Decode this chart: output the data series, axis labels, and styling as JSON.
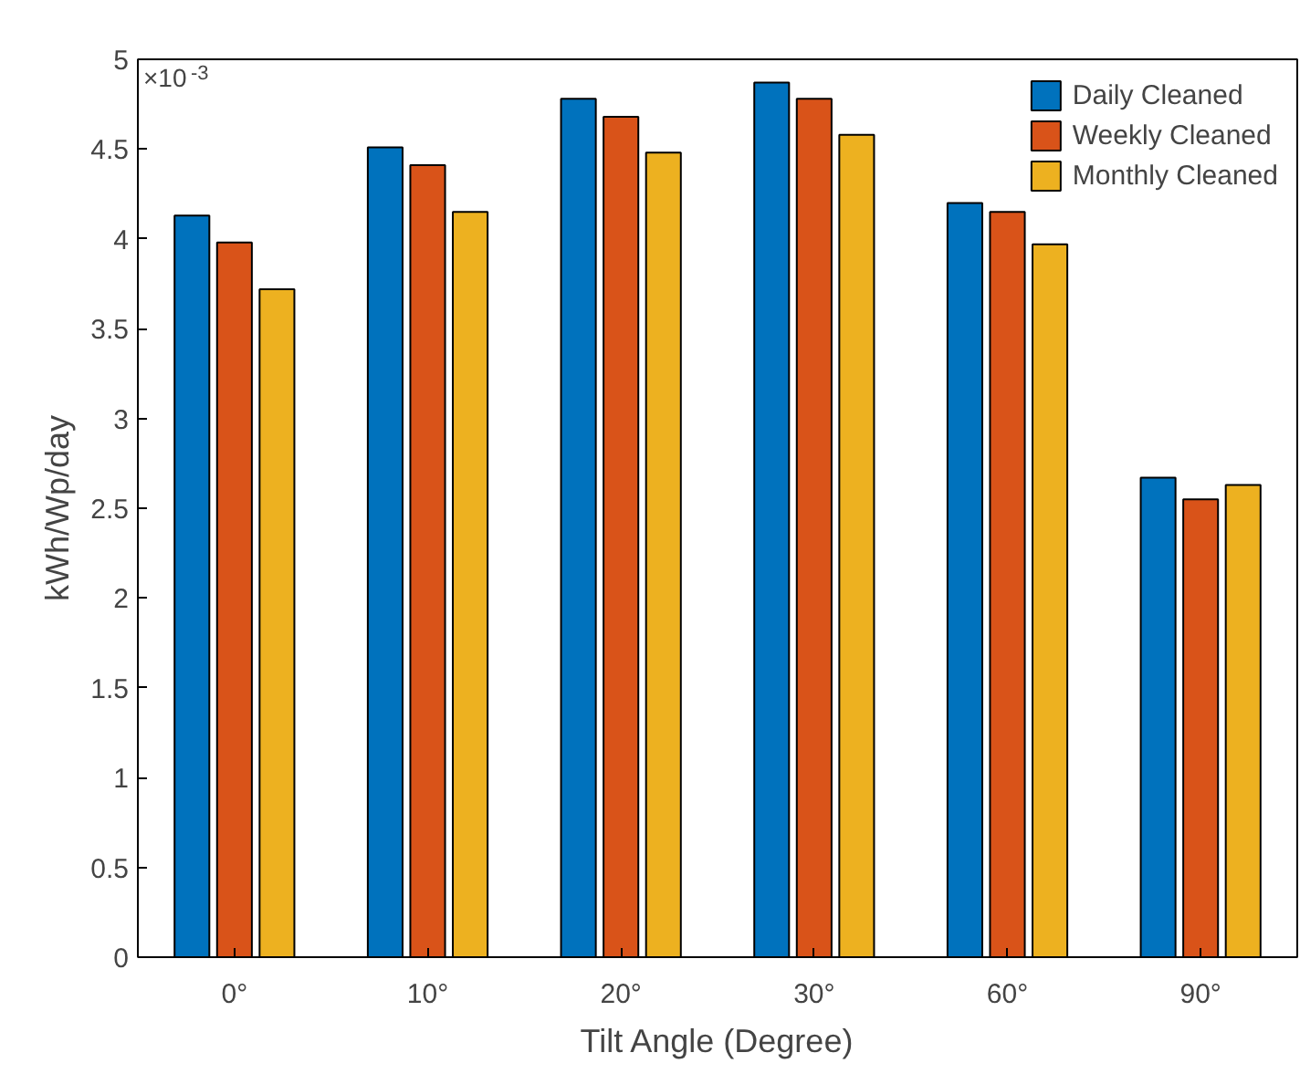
{
  "chart_data": {
    "type": "bar",
    "xlabel": "Tilt Angle (Degree)",
    "ylabel": "kWh/Wp/day",
    "categories": [
      "0°",
      "10°",
      "20°",
      "30°",
      "60°",
      "90°"
    ],
    "series": [
      {
        "name": "Daily Cleaned",
        "color": "#0072bd",
        "values": [
          4.13,
          4.51,
          4.78,
          4.87,
          4.2,
          2.67
        ]
      },
      {
        "name": "Weekly Cleaned",
        "color": "#d95319",
        "values": [
          3.98,
          4.41,
          4.68,
          4.78,
          4.15,
          2.55
        ]
      },
      {
        "name": "Monthly Cleaned",
        "color": "#edb120",
        "values": [
          3.72,
          4.15,
          4.48,
          4.58,
          3.97,
          2.63
        ]
      }
    ],
    "ylim": [
      0,
      5
    ],
    "yticks": [
      0,
      0.5,
      1,
      1.5,
      2,
      2.5,
      3,
      3.5,
      4,
      4.5,
      5
    ],
    "annotations": [
      "×10$^{-3}$"
    ],
    "grid": false,
    "legend": "top right"
  }
}
